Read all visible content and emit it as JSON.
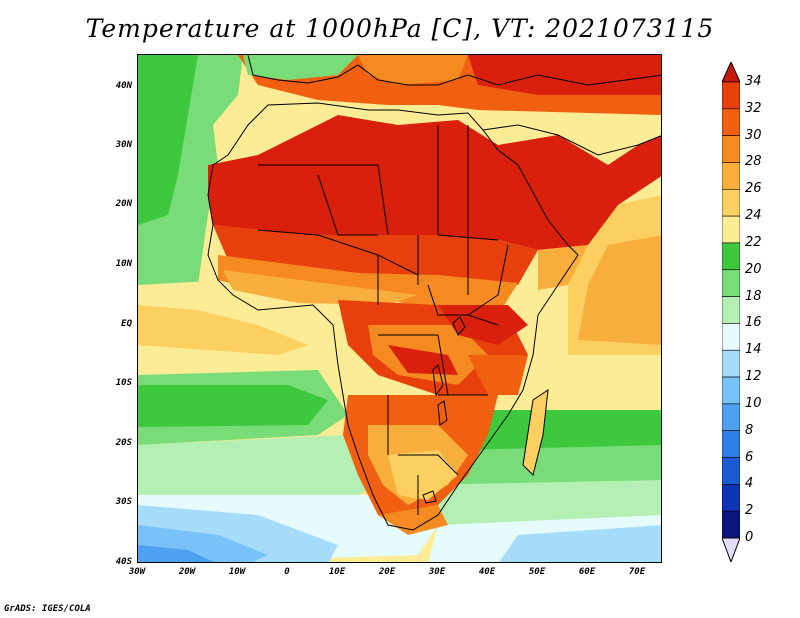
{
  "title": "Temperature at 1000hPa [C], VT: 2021073115",
  "footer": "GrADS: IGES/COLA",
  "map": {
    "region": "Africa",
    "lat_range": [
      -40,
      45
    ],
    "lon_range": [
      -30,
      75
    ],
    "lat_ticks": [
      "40N",
      "30N",
      "20N",
      "10N",
      "EQ",
      "10S",
      "20S",
      "30S",
      "40S"
    ],
    "lon_ticks": [
      "30W",
      "20W",
      "10W",
      "0",
      "10E",
      "20E",
      "30E",
      "40E",
      "50E",
      "60E",
      "70E"
    ],
    "variable": "Temperature at 1000hPa",
    "units": "C"
  },
  "colorbar": {
    "labels": [
      "34",
      "32",
      "30",
      "28",
      "26",
      "24",
      "22",
      "20",
      "18",
      "16",
      "14",
      "12",
      "10",
      "8",
      "6",
      "4",
      "2",
      "0"
    ],
    "colors": [
      "#d8200c",
      "#e8400c",
      "#f06010",
      "#f58a20",
      "#f8ae3c",
      "#fcd060",
      "#fcec96",
      "#3dc83d",
      "#78dc78",
      "#b4f0b4",
      "#e6fcfc",
      "#a6dcfa",
      "#78c2f8",
      "#4ea0f0",
      "#2e7ee8",
      "#1a5ad2",
      "#0c34b4",
      "#0a1680"
    ],
    "over_color": "#c81a0a",
    "under_color": "#e0dcfa"
  }
}
